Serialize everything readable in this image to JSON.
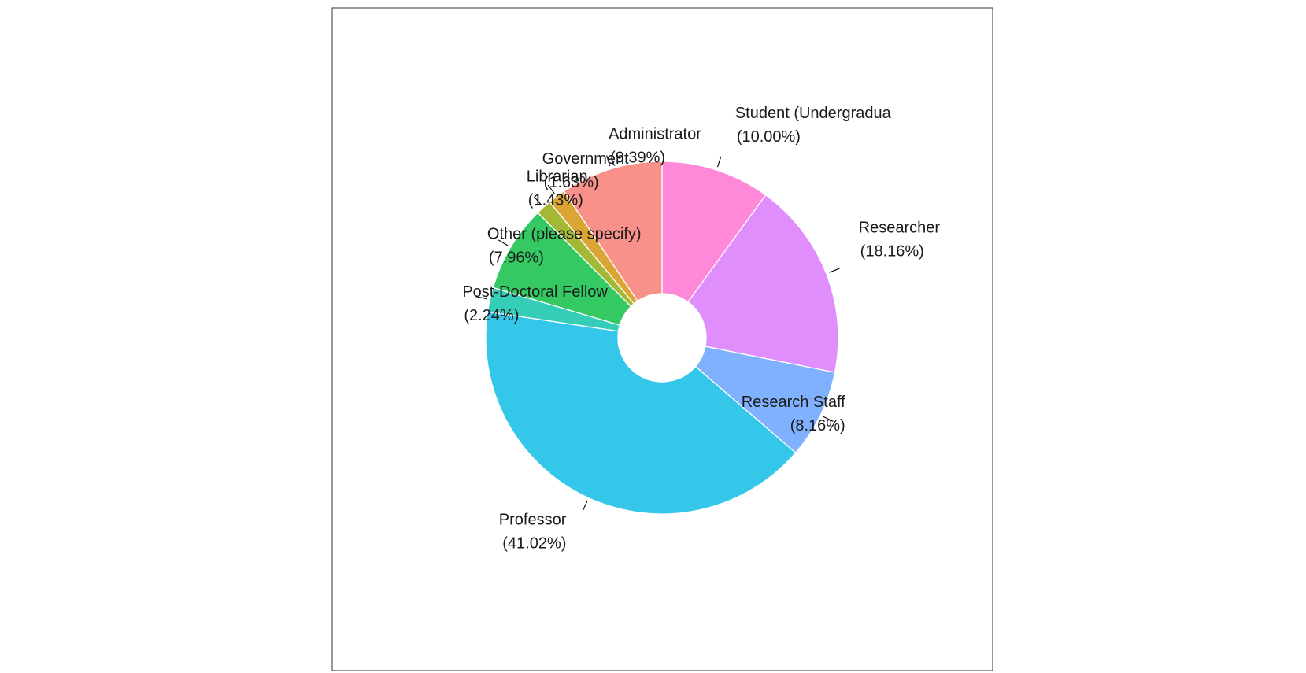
{
  "chart_data": {
    "type": "pie",
    "donut": true,
    "start_angle_deg": 90,
    "direction": "clockwise",
    "slices": [
      {
        "label": "Student (Undergraduate)",
        "display_label": "Student (Undergradua",
        "percent_text": "(10.00%)",
        "value": 10.0,
        "color": "#FF88D8"
      },
      {
        "label": "Researcher",
        "display_label": "Researcher",
        "percent_text": "(18.16%)",
        "value": 18.16,
        "color": "#E08EFC"
      },
      {
        "label": "Research Staff",
        "display_label": "Research Staff",
        "percent_text": "(8.16%)",
        "value": 8.16,
        "color": "#80B1FF"
      },
      {
        "label": "Professor",
        "display_label": "Professor",
        "percent_text": "(41.02%)",
        "value": 41.02,
        "color": "#35C7EA"
      },
      {
        "label": "Post-Doctoral Fellow",
        "display_label": "Post-Doctoral Fellow",
        "percent_text": "(2.24%)",
        "value": 2.24,
        "color": "#35CDB8"
      },
      {
        "label": "Other (please specify)",
        "display_label": "Other (please specify)",
        "percent_text": "(7.96%)",
        "value": 7.96,
        "color": "#35C964"
      },
      {
        "label": "Librarian",
        "display_label": "Librarian",
        "percent_text": "(1.43%)",
        "value": 1.43,
        "color": "#A3B935"
      },
      {
        "label": "Government",
        "display_label": "Government",
        "percent_text": "(1.63%)",
        "value": 1.63,
        "color": "#DBA535"
      },
      {
        "label": "Administrator",
        "display_label": "Administrator",
        "percent_text": "(9.39%)",
        "value": 9.39,
        "color": "#F8918A"
      }
    ]
  }
}
